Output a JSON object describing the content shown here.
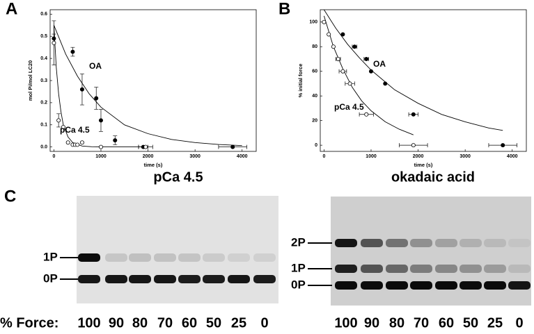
{
  "chart_data": [
    {
      "type": "scatter",
      "panel": "A",
      "xlabel": "time (s)",
      "ylabel": "mol Pi/mol LC20",
      "xlim": [
        -80,
        4300
      ],
      "ylim": [
        -0.02,
        0.62
      ],
      "xticks": [
        0,
        1000,
        2000,
        3000,
        4000
      ],
      "yticks": [
        {
          "value": 0,
          "label": "0.0"
        },
        0.1,
        0.2,
        0.3,
        0.4,
        0.5,
        0.6
      ],
      "series": [
        {
          "name": "OA",
          "color": "#000000",
          "marker": "filled",
          "x": [
            0,
            400,
            600,
            900,
            1000,
            1300,
            1900,
            3800
          ],
          "values": [
            0.49,
            0.43,
            0.26,
            0.22,
            0.12,
            0.03,
            0.0,
            0.0
          ],
          "xerr": [
            null,
            null,
            null,
            null,
            null,
            null,
            100,
            300
          ],
          "yerr": [
            0.02,
            0.02,
            0.07,
            0.05,
            0.05,
            0.02,
            null,
            null
          ],
          "curve_x": [
            0,
            250,
            500,
            750,
            1000,
            1500,
            2000,
            2500,
            3000,
            3500,
            4000
          ],
          "curve_y": [
            0.55,
            0.42,
            0.32,
            0.24,
            0.18,
            0.1,
            0.06,
            0.034,
            0.02,
            0.011,
            0.006
          ]
        },
        {
          "name": "pCa 4.5",
          "color": "#000000",
          "marker": "open",
          "x": [
            0,
            100,
            200,
            300,
            400,
            450,
            500,
            600,
            1000,
            1950
          ],
          "values": [
            0.47,
            0.12,
            0.09,
            0.02,
            0.01,
            0.01,
            0.01,
            0.02,
            0.0,
            0.0
          ],
          "xerr": [
            null,
            null,
            null,
            null,
            null,
            null,
            null,
            null,
            null,
            150
          ],
          "yerr": [
            0.1,
            0.03,
            null,
            null,
            null,
            null,
            null,
            null,
            null,
            null
          ],
          "curve_x": [
            0,
            50,
            100,
            150,
            200,
            300,
            400,
            600,
            800,
            1000,
            1500,
            2000
          ],
          "curve_y": [
            0.55,
            0.36,
            0.24,
            0.16,
            0.1,
            0.045,
            0.02,
            0.004,
            0.001,
            0.0,
            0.0,
            0.0
          ]
        }
      ]
    },
    {
      "type": "scatter",
      "panel": "B",
      "xlabel": "time (s)",
      "ylabel": "% initial force",
      "xlim": [
        -80,
        4300
      ],
      "ylim": [
        -5,
        110
      ],
      "xticks": [
        0,
        1000,
        2000,
        3000,
        4000
      ],
      "yticks": [
        0,
        20,
        40,
        60,
        80,
        100
      ],
      "series": [
        {
          "name": "OA",
          "color": "#000000",
          "marker": "filled",
          "x": [
            400,
            650,
            900,
            1000,
            1300,
            1900,
            3800
          ],
          "values": [
            90,
            80,
            70,
            60,
            50,
            25,
            0
          ],
          "xerr": [
            null,
            50,
            50,
            null,
            null,
            100,
            300
          ],
          "yerr": [
            null,
            null,
            null,
            null,
            null,
            null,
            null
          ],
          "curve_x": [
            0,
            250,
            500,
            750,
            1000,
            1500,
            2000,
            2500,
            3000,
            3500,
            3800
          ],
          "curve_y": [
            110,
            95,
            82,
            71,
            61,
            45,
            34,
            25,
            19,
            14,
            12
          ]
        },
        {
          "name": "pCa 4.5",
          "color": "#000000",
          "marker": "open",
          "x": [
            0,
            100,
            200,
            300,
            400,
            550,
            900,
            1900
          ],
          "values": [
            100,
            90,
            80,
            70,
            60,
            50,
            25,
            0
          ],
          "xerr": [
            null,
            null,
            null,
            50,
            80,
            100,
            150,
            300
          ],
          "yerr": [
            null,
            null,
            null,
            null,
            null,
            null,
            null,
            null
          ],
          "curve_x": [
            0,
            200,
            400,
            600,
            800,
            1000,
            1300,
            1600,
            1900
          ],
          "curve_y": [
            105,
            80,
            62,
            47,
            36,
            28,
            19,
            13,
            8.4
          ]
        }
      ]
    }
  ],
  "gel": {
    "panel": "C",
    "force_label": "% Force:",
    "gels": [
      {
        "title": "pCa 4.5",
        "bands": [
          "1P",
          "0P"
        ],
        "lanes": [
          100,
          90,
          80,
          70,
          60,
          50,
          25,
          0
        ]
      },
      {
        "title": "okadaic acid",
        "bands": [
          "2P",
          "1P",
          "0P"
        ],
        "lanes": [
          100,
          90,
          80,
          70,
          60,
          50,
          25,
          0
        ]
      }
    ]
  }
}
